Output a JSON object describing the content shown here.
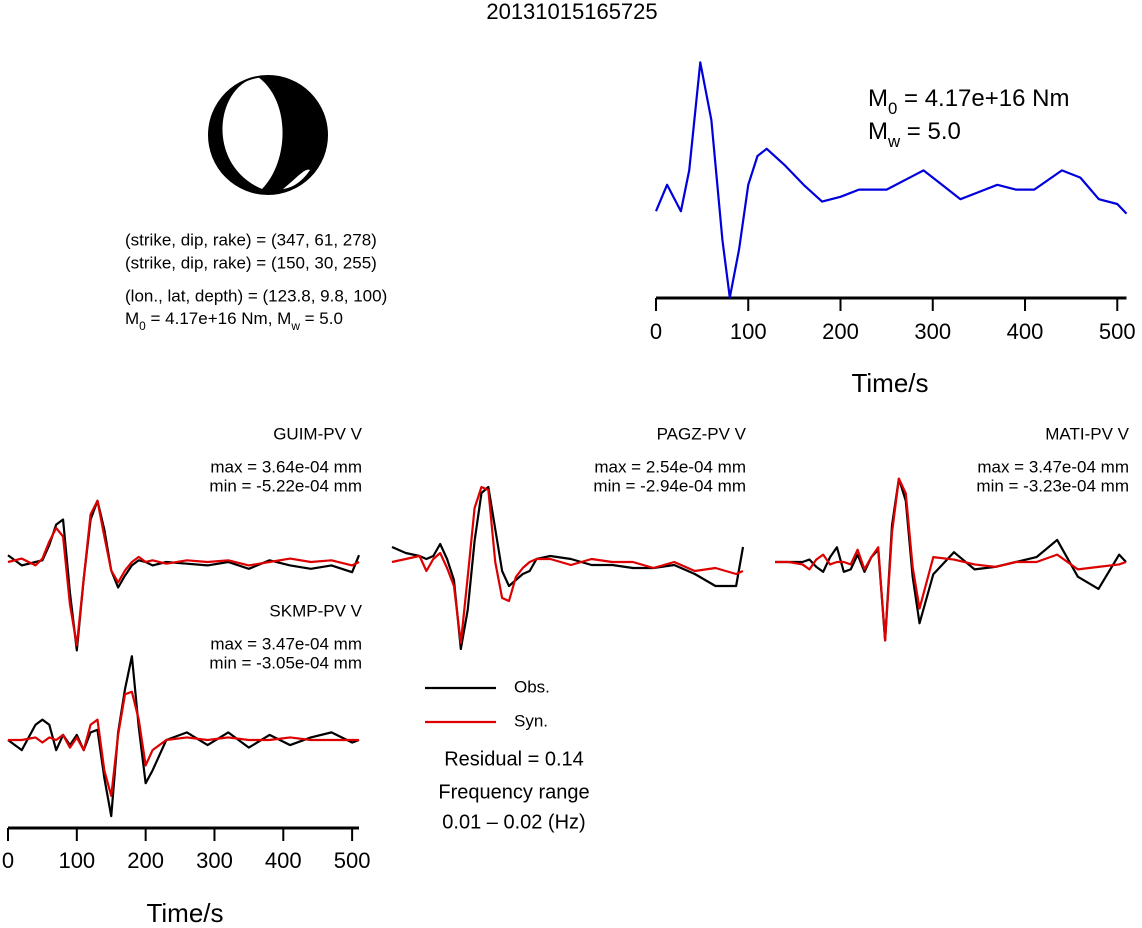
{
  "title": "20131015165725",
  "mechanism": {
    "lines": [
      "(strike, dip, rake) = (347, 61, 278)",
      "(strike, dip, rake) = (150, 30, 255)",
      "(lon., lat, depth) = (123.8, 9.8, 100)"
    ],
    "moment_line": [
      "M",
      "0",
      " = 4.17e+16 Nm, M",
      "w",
      " = 5.0"
    ]
  },
  "chart_data": [
    {
      "type": "line",
      "xlabel": "Time/s",
      "xlim": [
        0,
        510
      ],
      "xticks": [
        0,
        100,
        200,
        300,
        400,
        500
      ],
      "ylim": [
        0,
        1
      ],
      "x": [
        0,
        12,
        27,
        36,
        48,
        60,
        72,
        80,
        90,
        100,
        110,
        120,
        140,
        160,
        180,
        200,
        220,
        250,
        280,
        290,
        310,
        330,
        350,
        370,
        390,
        410,
        440,
        460,
        480,
        500,
        510
      ],
      "series": [
        {
          "color": "#0000dd",
          "values": [
            0.37,
            0.48,
            0.37,
            0.54,
            0.99,
            0.75,
            0.25,
            0.01,
            0.21,
            0.48,
            0.6,
            0.63,
            0.56,
            0.48,
            0.41,
            0.43,
            0.46,
            0.46,
            0.52,
            0.54,
            0.48,
            0.42,
            0.45,
            0.48,
            0.46,
            0.46,
            0.54,
            0.51,
            0.42,
            0.4,
            0.36
          ]
        }
      ],
      "annotations": [
        [
          "M",
          "0",
          " = 4.17e+16 Nm"
        ],
        [
          "M",
          "w",
          " = 5.0"
        ]
      ]
    },
    {
      "type": "waveforms",
      "xlabel": "Time/s",
      "xlim": [
        0,
        510
      ],
      "xticks": [
        0,
        100,
        200,
        300,
        400,
        500
      ],
      "x": [
        0,
        20,
        40,
        50,
        60,
        70,
        80,
        90,
        100,
        110,
        120,
        130,
        140,
        150,
        160,
        170,
        180,
        190,
        200,
        210,
        230,
        260,
        290,
        320,
        350,
        380,
        410,
        440,
        470,
        500,
        510
      ],
      "series": [
        {
          "name": "Obs.",
          "color": "#000000"
        },
        {
          "name": "Syn.",
          "color": "#dd0000"
        }
      ],
      "panels": [
        {
          "station": "GUIM-PV V",
          "max": "max = 3.64e-04 mm",
          "min": "min = -5.22e-04 mm",
          "values": [
            [
              0.4,
              -0.2,
              0,
              0.1,
              1,
              2.2,
              2.5,
              -1.8,
              -5.2,
              -1,
              2.5,
              3.6,
              1.9,
              -0.5,
              -1.5,
              -0.8,
              -0.2,
              0.1,
              0,
              -0.2,
              0,
              -0.1,
              -0.2,
              0,
              -0.4,
              0.1,
              -0.2,
              -0.4,
              -0.2,
              -0.6,
              0.4
            ],
            [
              0,
              0.2,
              -0.2,
              0.2,
              1.2,
              2,
              1.5,
              -2.5,
              -4.9,
              -1,
              2.8,
              3.6,
              1.5,
              -0.5,
              -1.2,
              -0.5,
              0,
              0.3,
              0,
              0.1,
              -0.1,
              0.1,
              0,
              0.1,
              -0.2,
              0,
              0.2,
              0,
              0.1,
              -0.2,
              0
            ]
          ]
        },
        {
          "station": "PAGZ-PV V",
          "max": "max = 2.54e-04 mm",
          "min": "min = -2.94e-04 mm",
          "values": [
            [
              0.5,
              0.3,
              0.2,
              0.1,
              0.2,
              0.6,
              0.1,
              -0.6,
              -2.9,
              -1.6,
              0.7,
              2.3,
              2.5,
              1.1,
              -0.3,
              -0.8,
              -0.6,
              -0.4,
              -0.3,
              0.1,
              0.2,
              0.1,
              -0.1,
              -0.1,
              -0.2,
              -0.2,
              -0.1,
              -0.4,
              -0.8,
              -0.8,
              0.5
            ],
            [
              0,
              0.1,
              0.2,
              -0.3,
              0.1,
              0.3,
              -0.2,
              -0.8,
              -2.7,
              -0.5,
              1.8,
              2.5,
              2.4,
              0,
              -1.2,
              -1.3,
              -0.5,
              -0.2,
              0,
              0.1,
              0.1,
              -0.1,
              0.1,
              0,
              0,
              -0.2,
              0,
              -0.3,
              -0.2,
              -0.4,
              -0.3
            ]
          ]
        },
        {
          "station": "MATI-PV V",
          "max": "max = 3.47e-04 mm",
          "min": "min = -3.23e-04 mm",
          "values": [
            [
              0,
              0,
              0,
              0.1,
              -0.2,
              -0.4,
              0.2,
              0.6,
              -0.4,
              -0.3,
              0.3,
              -0.4,
              0.2,
              0.5,
              -3.2,
              1.5,
              3.4,
              2.5,
              -0.6,
              -2.5,
              -0.5,
              0.4,
              -0.3,
              -0.2,
              0,
              0.2,
              0.9,
              -0.6,
              -1.1,
              0.3,
              0
            ],
            [
              0,
              0,
              -0.1,
              -0.3,
              0.1,
              0.3,
              -0.1,
              0,
              0,
              -0.1,
              0.5,
              -0.3,
              0.2,
              0.6,
              -3.2,
              1.2,
              3.4,
              2.8,
              -0.2,
              -1.9,
              0.2,
              0.1,
              -0.1,
              -0.2,
              0,
              0,
              0.3,
              -0.3,
              -0.2,
              -0.1,
              0
            ]
          ]
        },
        {
          "station": "SKMP-PV V",
          "max": "max = 3.47e-04 mm",
          "min": "min = -3.05e-04 mm",
          "values": [
            [
              0,
              -0.4,
              0.6,
              0.8,
              0.6,
              -0.4,
              0.2,
              -0.2,
              0.2,
              -0.4,
              0.3,
              0.4,
              -1.5,
              -3,
              0.3,
              2,
              3.3,
              0.5,
              -1.7,
              -1.2,
              0,
              0.3,
              -0.2,
              0.3,
              -0.3,
              0.2,
              -0.2,
              0.1,
              0.3,
              -0.1,
              0
            ],
            [
              0,
              0,
              0.1,
              -0.1,
              0.1,
              0,
              0.2,
              -0.3,
              0.1,
              -0.4,
              0.6,
              0.8,
              -1.2,
              -2.2,
              0.2,
              1.8,
              1.9,
              0.8,
              -1,
              -0.4,
              0,
              0.1,
              0,
              0.1,
              0,
              0,
              0.1,
              0,
              0,
              0,
              0
            ]
          ]
        }
      ],
      "residual": "Residual = 0.14",
      "frequency_title": "Frequency range",
      "frequency": "0.01 – 0.02 (Hz)"
    }
  ]
}
